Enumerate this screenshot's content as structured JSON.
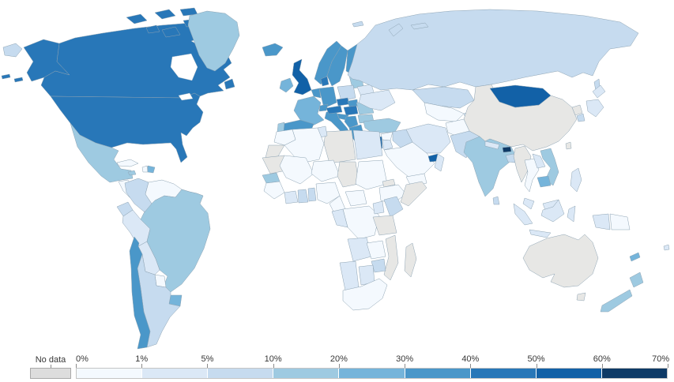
{
  "chart_data": {
    "type": "choropleth_map",
    "title": "",
    "unit": "%",
    "legend": {
      "no_data_label": "No data",
      "no_data_color": "#dddddd",
      "tick_labels": [
        "0%",
        "1%",
        "5%",
        "10%",
        "20%",
        "30%",
        "40%",
        "50%",
        "60%",
        "70%"
      ],
      "bin_colors": [
        "#f4f9fe",
        "#dbe8f6",
        "#c6dbef",
        "#9ecae1",
        "#75b4da",
        "#4a97c9",
        "#2877b8",
        "#1261a7",
        "#0e3a66"
      ]
    },
    "countries": {
      "united_states": {
        "name": "United States",
        "bin": "40-50%",
        "color": "#2877b8"
      },
      "canada": {
        "name": "Canada",
        "bin": "40-50%",
        "color": "#2877b8"
      },
      "greenland": {
        "name": "Greenland",
        "bin": "10-20%",
        "color": "#9ecae1"
      },
      "mexico": {
        "name": "Mexico",
        "bin": "10-20%",
        "color": "#9ecae1"
      },
      "central_america": {
        "name": "Central America",
        "bin": "0-1%",
        "color": "#f4f9fe"
      },
      "costa_rica_panama": {
        "name": "Costa Rica / Panama",
        "bin": "5-10%",
        "color": "#c6dbef"
      },
      "cuba": {
        "name": "Cuba",
        "bin": "0-1%",
        "color": "#f4f9fe"
      },
      "jamaica": {
        "name": "Jamaica",
        "bin": "10-20%",
        "color": "#9ecae1"
      },
      "haiti": {
        "name": "Haiti",
        "bin": "0-1%",
        "color": "#f4f9fe"
      },
      "dominican_republic": {
        "name": "Dominican Republic",
        "bin": "20-30%",
        "color": "#75b4da"
      },
      "colombia": {
        "name": "Colombia",
        "bin": "5-10%",
        "color": "#c6dbef"
      },
      "venezuela": {
        "name": "Venezuela",
        "bin": "0-1%",
        "color": "#f4f9fe"
      },
      "guyana": {
        "name": "Guyana",
        "bin": "0-1%",
        "color": "#f4f9fe"
      },
      "suriname": {
        "name": "Suriname",
        "bin": "no-data",
        "color": "#e7e7e5"
      },
      "french_guiana": {
        "name": "French Guiana",
        "bin": "no-data",
        "color": "#e7e7e5"
      },
      "ecuador": {
        "name": "Ecuador",
        "bin": "5-10%",
        "color": "#c6dbef"
      },
      "peru": {
        "name": "Peru",
        "bin": "1-5%",
        "color": "#dbe8f6"
      },
      "brazil": {
        "name": "Brazil",
        "bin": "10-20%",
        "color": "#9ecae1"
      },
      "bolivia": {
        "name": "Bolivia",
        "bin": "1-5%",
        "color": "#dbe8f6"
      },
      "paraguay": {
        "name": "Paraguay",
        "bin": "0-1%",
        "color": "#f4f9fe"
      },
      "uruguay": {
        "name": "Uruguay",
        "bin": "20-30%",
        "color": "#75b4da"
      },
      "argentina": {
        "name": "Argentina",
        "bin": "5-10%",
        "color": "#c6dbef"
      },
      "chile": {
        "name": "Chile",
        "bin": "30-40%",
        "color": "#4a97c9"
      },
      "iceland": {
        "name": "Iceland",
        "bin": "30-40%",
        "color": "#4a97c9"
      },
      "ireland": {
        "name": "Ireland",
        "bin": "20-30%",
        "color": "#75b4da"
      },
      "united_kingdom": {
        "name": "United Kingdom",
        "bin": "50-60%",
        "color": "#1261a7"
      },
      "norway": {
        "name": "Norway",
        "bin": "30-40%",
        "color": "#4a97c9"
      },
      "sweden": {
        "name": "Sweden",
        "bin": "30-40%",
        "color": "#4a97c9"
      },
      "finland": {
        "name": "Finland",
        "bin": "30-40%",
        "color": "#4a97c9"
      },
      "denmark": {
        "name": "Denmark",
        "bin": "40-50%",
        "color": "#2877b8"
      },
      "baltics": {
        "name": "Baltic states",
        "bin": "10-20%",
        "color": "#9ecae1"
      },
      "belarus": {
        "name": "Belarus",
        "bin": "1-5%",
        "color": "#dbe8f6"
      },
      "poland": {
        "name": "Poland",
        "bin": "5-10%",
        "color": "#c6dbef"
      },
      "germany": {
        "name": "Germany",
        "bin": "30-40%",
        "color": "#4a97c9"
      },
      "benelux": {
        "name": "Netherlands / Belgium",
        "bin": "30-40%",
        "color": "#4a97c9"
      },
      "france": {
        "name": "France",
        "bin": "20-30%",
        "color": "#75b4da"
      },
      "spain": {
        "name": "Spain",
        "bin": "30-40%",
        "color": "#4a97c9"
      },
      "portugal": {
        "name": "Portugal",
        "bin": "10-20%",
        "color": "#9ecae1"
      },
      "switzerland": {
        "name": "Switzerland",
        "bin": "30-40%",
        "color": "#4a97c9"
      },
      "italy": {
        "name": "Italy",
        "bin": "30-40%",
        "color": "#4a97c9"
      },
      "czechia": {
        "name": "Czechia",
        "bin": "40-50%",
        "color": "#2877b8"
      },
      "austria": {
        "name": "Austria",
        "bin": "40-50%",
        "color": "#2877b8"
      },
      "slovakia": {
        "name": "Slovakia",
        "bin": "30-40%",
        "color": "#4a97c9"
      },
      "hungary": {
        "name": "Hungary",
        "bin": "40-50%",
        "color": "#2877b8"
      },
      "croatia_slovenia": {
        "name": "Croatia / Slovenia",
        "bin": "30-40%",
        "color": "#4a97c9"
      },
      "serbia_bosnia": {
        "name": "Serbia / Bosnia",
        "bin": "30-40%",
        "color": "#4a97c9"
      },
      "romania": {
        "name": "Romania",
        "bin": "10-20%",
        "color": "#9ecae1"
      },
      "bulgaria": {
        "name": "Bulgaria",
        "bin": "10-20%",
        "color": "#9ecae1"
      },
      "greece": {
        "name": "Greece",
        "bin": "30-40%",
        "color": "#4a97c9"
      },
      "ukraine": {
        "name": "Ukraine",
        "bin": "1-5%",
        "color": "#dbe8f6"
      },
      "russia": {
        "name": "Russia",
        "bin": "5-10%",
        "color": "#c6dbef"
      },
      "kazakhstan": {
        "name": "Kazakhstan",
        "bin": "5-10%",
        "color": "#c6dbef"
      },
      "central_asia": {
        "name": "Uzbekistan / Turkmenistan",
        "bin": "0-1%",
        "color": "#f4f9fe"
      },
      "kyrgyz_tajik": {
        "name": "Kyrgyzstan / Tajikistan",
        "bin": "1-5%",
        "color": "#dbe8f6"
      },
      "mongolia": {
        "name": "Mongolia",
        "bin": "50-60%",
        "color": "#1261a7"
      },
      "china": {
        "name": "China",
        "bin": "no-data",
        "color": "#e7e7e5"
      },
      "north_korea": {
        "name": "North Korea",
        "bin": "no-data",
        "color": "#e7e7e5"
      },
      "south_korea": {
        "name": "South Korea",
        "bin": "5-10%",
        "color": "#c6dbef"
      },
      "japan": {
        "name": "Japan",
        "bin": "1-5%",
        "color": "#dbe8f6"
      },
      "taiwan": {
        "name": "Taiwan",
        "bin": "no-data",
        "color": "#e7e7e5"
      },
      "afghanistan": {
        "name": "Afghanistan",
        "bin": "0-1%",
        "color": "#f4f9fe"
      },
      "pakistan": {
        "name": "Pakistan",
        "bin": "5-10%",
        "color": "#c6dbef"
      },
      "india": {
        "name": "India",
        "bin": "10-20%",
        "color": "#9ecae1"
      },
      "nepal": {
        "name": "Nepal",
        "bin": "1-5%",
        "color": "#dbe8f6"
      },
      "bhutan": {
        "name": "Bhutan",
        "bin": "60-70%",
        "color": "#0e3a66"
      },
      "bangladesh": {
        "name": "Bangladesh",
        "bin": "5-10%",
        "color": "#c6dbef"
      },
      "sri_lanka": {
        "name": "Sri Lanka",
        "bin": "5-10%",
        "color": "#c6dbef"
      },
      "turkey": {
        "name": "Turkey",
        "bin": "10-20%",
        "color": "#9ecae1"
      },
      "syria": {
        "name": "Syria",
        "bin": "0-1%",
        "color": "#f4f9fe"
      },
      "israel": {
        "name": "Israel",
        "bin": "50-60%",
        "color": "#1261a7"
      },
      "jordan": {
        "name": "Jordan",
        "bin": "1-5%",
        "color": "#dbe8f6"
      },
      "iraq": {
        "name": "Iraq",
        "bin": "5-10%",
        "color": "#c6dbef"
      },
      "saudi_arabia": {
        "name": "Saudi Arabia",
        "bin": "0-1%",
        "color": "#f4f9fe"
      },
      "uae": {
        "name": "United Arab Emirates",
        "bin": "50-60%",
        "color": "#1261a7"
      },
      "oman": {
        "name": "Oman",
        "bin": "1-5%",
        "color": "#dbe8f6"
      },
      "yemen": {
        "name": "Yemen",
        "bin": "0-1%",
        "color": "#f4f9fe"
      },
      "iran": {
        "name": "Iran",
        "bin": "1-5%",
        "color": "#dbe8f6"
      },
      "egypt": {
        "name": "Egypt",
        "bin": "1-5%",
        "color": "#dbe8f6"
      },
      "libya": {
        "name": "Libya",
        "bin": "no-data",
        "color": "#e7e7e5"
      },
      "tunisia": {
        "name": "Tunisia",
        "bin": "1-5%",
        "color": "#dbe8f6"
      },
      "algeria": {
        "name": "Algeria",
        "bin": "0-1%",
        "color": "#f4f9fe"
      },
      "morocco": {
        "name": "Morocco",
        "bin": "0-1%",
        "color": "#f4f9fe"
      },
      "western_sahara": {
        "name": "Western Sahara",
        "bin": "no-data",
        "color": "#e7e7e5"
      },
      "mauritania": {
        "name": "Mauritania",
        "bin": "no-data",
        "color": "#e7e7e5"
      },
      "mali": {
        "name": "Mali",
        "bin": "0-1%",
        "color": "#f4f9fe"
      },
      "niger": {
        "name": "Niger",
        "bin": "0-1%",
        "color": "#f4f9fe"
      },
      "chad": {
        "name": "Chad",
        "bin": "no-data",
        "color": "#e7e7e5"
      },
      "sudan": {
        "name": "Sudan",
        "bin": "0-1%",
        "color": "#f4f9fe"
      },
      "eritrea": {
        "name": "Eritrea",
        "bin": "no-data",
        "color": "#e7e7e5"
      },
      "ethiopia": {
        "name": "Ethiopia",
        "bin": "0-1%",
        "color": "#f4f9fe"
      },
      "somalia": {
        "name": "Somalia",
        "bin": "no-data",
        "color": "#e7e7e5"
      },
      "senegal": {
        "name": "Senegal",
        "bin": "10-20%",
        "color": "#9ecae1"
      },
      "guinea_region": {
        "name": "Guinea region",
        "bin": "0-1%",
        "color": "#f4f9fe"
      },
      "ivory_coast": {
        "name": "Cote d'Ivoire",
        "bin": "1-5%",
        "color": "#dbe8f6"
      },
      "ghana": {
        "name": "Ghana",
        "bin": "5-10%",
        "color": "#c6dbef"
      },
      "togo_benin": {
        "name": "Togo / Benin",
        "bin": "5-10%",
        "color": "#c6dbef"
      },
      "nigeria": {
        "name": "Nigeria",
        "bin": "0-1%",
        "color": "#f4f9fe"
      },
      "cameroon": {
        "name": "Cameroon",
        "bin": "0-1%",
        "color": "#f4f9fe"
      },
      "central_african_republic": {
        "name": "Central African Republic",
        "bin": "0-1%",
        "color": "#f4f9fe"
      },
      "drc": {
        "name": "DR Congo",
        "bin": "0-1%",
        "color": "#f4f9fe"
      },
      "gabon_congo": {
        "name": "Gabon / Congo",
        "bin": "1-5%",
        "color": "#dbe8f6"
      },
      "uganda": {
        "name": "Uganda",
        "bin": "1-5%",
        "color": "#dbe8f6"
      },
      "kenya": {
        "name": "Kenya",
        "bin": "5-10%",
        "color": "#c6dbef"
      },
      "tanzania": {
        "name": "Tanzania",
        "bin": "no-data",
        "color": "#e7e7e5"
      },
      "angola": {
        "name": "Angola",
        "bin": "1-5%",
        "color": "#dbe8f6"
      },
      "zambia": {
        "name": "Zambia",
        "bin": "0-1%",
        "color": "#f4f9fe"
      },
      "mozambique": {
        "name": "Mozambique",
        "bin": "no-data",
        "color": "#e7e7e5"
      },
      "zimbabwe": {
        "name": "Zimbabwe",
        "bin": "5-10%",
        "color": "#c6dbef"
      },
      "namibia": {
        "name": "Namibia",
        "bin": "1-5%",
        "color": "#dbe8f6"
      },
      "botswana": {
        "name": "Botswana",
        "bin": "1-5%",
        "color": "#dbe8f6"
      },
      "south_africa": {
        "name": "South Africa",
        "bin": "0-1%",
        "color": "#f4f9fe"
      },
      "madagascar": {
        "name": "Madagascar",
        "bin": "no-data",
        "color": "#e7e7e5"
      },
      "myanmar": {
        "name": "Myanmar",
        "bin": "no-data",
        "color": "#e7e7e5"
      },
      "thailand": {
        "name": "Thailand",
        "bin": "0-1%",
        "color": "#f4f9fe"
      },
      "laos": {
        "name": "Laos",
        "bin": "1-5%",
        "color": "#dbe8f6"
      },
      "vietnam": {
        "name": "Vietnam",
        "bin": "10-20%",
        "color": "#9ecae1"
      },
      "cambodia": {
        "name": "Cambodia",
        "bin": "20-30%",
        "color": "#75b4da"
      },
      "malaysia": {
        "name": "Malaysia",
        "bin": "1-5%",
        "color": "#dbe8f6"
      },
      "indonesia": {
        "name": "Indonesia",
        "bin": "1-5%",
        "color": "#dbe8f6"
      },
      "papua_new_guinea": {
        "name": "Papua New Guinea",
        "bin": "0-1%",
        "color": "#f4f9fe"
      },
      "philippines": {
        "name": "Philippines",
        "bin": "1-5%",
        "color": "#dbe8f6"
      },
      "australia": {
        "name": "Australia",
        "bin": "no-data",
        "color": "#e7e7e5"
      },
      "new_zealand": {
        "name": "New Zealand",
        "bin": "10-20%",
        "color": "#9ecae1"
      },
      "new_caledonia": {
        "name": "New Caledonia",
        "bin": "20-30%",
        "color": "#75b4da"
      },
      "fiji": {
        "name": "Fiji",
        "bin": "1-5%",
        "color": "#dbe8f6"
      }
    }
  }
}
